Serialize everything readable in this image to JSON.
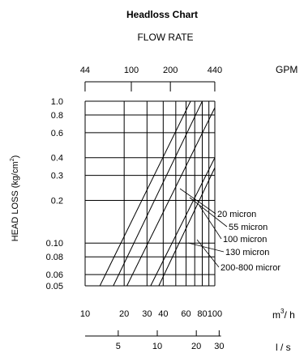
{
  "chart_data": {
    "type": "line",
    "title": "Headloss Chart",
    "subtitle": "FLOW RATE",
    "ylabel": "HEAD LOSS (kg/cm",
    "ylabel_sup": "2",
    "ylabel_close": ")",
    "y_scale": "log",
    "ylim": [
      0.05,
      1.0
    ],
    "x_scale": "log",
    "xlim_m3h": [
      10,
      100
    ],
    "y_ticks": [
      {
        "value": 1.0,
        "label": "1.0"
      },
      {
        "value": 0.8,
        "label": "0.8"
      },
      {
        "value": 0.6,
        "label": "0.6"
      },
      {
        "value": 0.4,
        "label": "0.4"
      },
      {
        "value": 0.3,
        "label": "0.3"
      },
      {
        "value": 0.2,
        "label": "0.2"
      },
      {
        "value": 0.1,
        "label": "0.10"
      },
      {
        "value": 0.08,
        "label": "0.08"
      },
      {
        "value": 0.06,
        "label": "0.06"
      },
      {
        "value": 0.05,
        "label": "0.05"
      }
    ],
    "axis_m3h": {
      "unit_main": "m",
      "unit_sup": "3",
      "unit_tail": "/ h",
      "ticks": [
        {
          "value": 10,
          "label": "10"
        },
        {
          "value": 20,
          "label": "20"
        },
        {
          "value": 30,
          "label": "30"
        },
        {
          "value": 40,
          "label": "40"
        },
        {
          "value": 60,
          "label": "60"
        },
        {
          "value": 80,
          "label": "80"
        },
        {
          "value": 100,
          "label": "100"
        }
      ]
    },
    "axis_gpm": {
      "unit": "GPM",
      "ticks": [
        {
          "value": 44,
          "label": "44"
        },
        {
          "value": 100,
          "label": "100"
        },
        {
          "value": 200,
          "label": "200"
        },
        {
          "value": 440,
          "label": "440"
        }
      ]
    },
    "axis_ls": {
      "unit": "l / s",
      "ticks": [
        {
          "value": 5,
          "label": "5"
        },
        {
          "value": 10,
          "label": "10"
        },
        {
          "value": 20,
          "label": "20"
        },
        {
          "value": 30,
          "label": "30"
        }
      ]
    },
    "series": [
      {
        "name": "20 micron",
        "x": [
          13,
          65
        ],
        "y": [
          0.05,
          1.0
        ]
      },
      {
        "name": "55 micron",
        "x": [
          16.5,
          80
        ],
        "y": [
          0.05,
          1.0
        ]
      },
      {
        "name": "100 micron",
        "x": [
          21,
          100
        ],
        "y": [
          0.05,
          0.9
        ]
      },
      {
        "name": "130 micron",
        "x": [
          32,
          100
        ],
        "y": [
          0.05,
          0.4
        ]
      },
      {
        "name": "200-800 micror",
        "x": [
          37,
          100
        ],
        "y": [
          0.05,
          0.34
        ]
      }
    ]
  }
}
